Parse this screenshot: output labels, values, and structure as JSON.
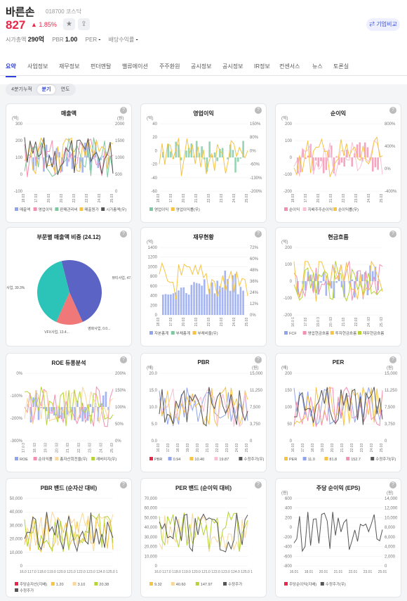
{
  "header": {
    "name": "바른손",
    "code": "018700 코스닥",
    "price": "827",
    "change": "▲ 1.85%",
    "metrics": [
      {
        "label": "시가총액",
        "value": "290억"
      },
      {
        "label": "PBR",
        "value": "1.00"
      },
      {
        "label": "PER",
        "value": "-"
      },
      {
        "label": "배당수익률",
        "value": "-"
      }
    ],
    "compare": "⇄ 기업비교",
    "star_icon": "★",
    "share_icon": "⇪"
  },
  "tabs": [
    "요약",
    "사업정보",
    "재무정보",
    "펀더멘탈",
    "밸류에이션",
    "주주환원",
    "공시정보",
    "공시정보",
    "IR정보",
    "컨센서스",
    "뉴스",
    "토론실"
  ],
  "period": [
    "4분기누적",
    "분기",
    "연도"
  ],
  "qmark": "?",
  "cards": [
    {
      "title": "매출액",
      "ul": "(억)",
      "ur": "(원)",
      "yl": [
        "300",
        "200",
        "100",
        "0",
        "-100"
      ],
      "yr": [
        "2000",
        "1500",
        "1000",
        "500",
        "0"
      ],
      "x": [
        "18.03",
        "17.03",
        "20.03",
        "20.03",
        "22.03",
        "22.03",
        "24.03",
        "25.03"
      ],
      "legend": [
        "매출액",
        "영업이익",
        "판매관리비",
        "매출원가",
        "시가총액(우)"
      ],
      "lc": [
        "#8fa3ef",
        "#f48fb1",
        "#7ec8a0",
        "#f6c343",
        "#555"
      ]
    },
    {
      "title": "영업이익",
      "ul": "(억)",
      "ur": "",
      "yl": [
        "40",
        "20",
        "0",
        "-20",
        "-40",
        "-60"
      ],
      "yr": [
        "150%",
        "80%",
        "0%",
        "-60%",
        "-130%",
        "-200%"
      ],
      "x": [
        "18.03",
        "17.03",
        "20.03",
        "21.03",
        "22.03",
        "23.03",
        "24.03",
        "25.03"
      ],
      "legend": [
        "영업이익",
        "영업이익률(우)"
      ],
      "lc": [
        "#7ec8a0",
        "#f6c343"
      ]
    },
    {
      "title": "순이익",
      "ul": "(억)",
      "ur": "",
      "yl": [
        "200",
        "100",
        "0",
        "-100",
        "-200"
      ],
      "yr": [
        "800%",
        "400%",
        "0%",
        "-400%"
      ],
      "x": [
        "18.03",
        "17.03",
        "20.03",
        "21.03",
        "22.03",
        "23.03",
        "24.03",
        "25.03"
      ],
      "legend": [
        "순이익",
        "지배주주순이익",
        "순이익률(우)"
      ],
      "lc": [
        "#f48fb1",
        "#f9c0d4",
        "#f6c343"
      ]
    },
    {
      "title": "부문별 매출액 비중 (24.12)",
      "ul": "",
      "ur": "",
      "yl": [],
      "yr": [],
      "x": [],
      "legend": [],
      "lc": []
    },
    {
      "title": "재무현황",
      "ul": "(억)",
      "ur": "",
      "yl": [
        "1400",
        "1200",
        "1000",
        "800",
        "600",
        "400",
        "200",
        "0"
      ],
      "yr": [
        "72%",
        "60%",
        "48%",
        "36%",
        "24%",
        "12%",
        "0%"
      ],
      "x": [
        "18.03",
        "17.03",
        "20.03",
        "21.03",
        "22.03",
        "23.03",
        "24.03",
        "25.03"
      ],
      "legend": [
        "자본총계",
        "부채총계",
        "부채비율(우)"
      ],
      "lc": [
        "#8fa3ef",
        "#7ec8a0",
        "#f6c343"
      ]
    },
    {
      "title": "현금흐름",
      "ul": "(억)",
      "ur": "",
      "yl": [
        "200",
        "100",
        "0",
        "-100",
        "-200"
      ],
      "yr": [],
      "x": [
        "16.0 1",
        "17.03",
        "19.0 3",
        "20. 03",
        "21.03",
        "22.03",
        "24. 03",
        "25. 03"
      ],
      "legend": [
        "FCF",
        "영업현금흐름",
        "투자현금흐름",
        "재무현금흐름"
      ],
      "lc": [
        "#8fa3ef",
        "#f48fb1",
        "#f6c343",
        "#b5d334"
      ]
    },
    {
      "title": "ROE 듀퐁분석",
      "ul": "",
      "ur": "",
      "yl": [
        "0%",
        "-100%",
        "-200%",
        "-300%"
      ],
      "yr": [
        "200%",
        "150%",
        "100%",
        "50%",
        "0%"
      ],
      "x": [
        "17.0 3",
        "18. 03",
        "19. 03",
        "20. 03",
        "21. 03",
        "22. 03",
        "23. 03",
        "24. 03",
        "25. 03"
      ],
      "legend": [
        "ROE",
        "순이익률",
        "총자산회전율(우)",
        "레버리지(우)"
      ],
      "lc": [
        "#8fa3ef",
        "#f48fb1",
        "#f9d89c",
        "#b5d334"
      ]
    },
    {
      "title": "PBR",
      "ul": "(배)",
      "ur": "(원)",
      "yl": [
        "20.0",
        "15.0",
        "10.0",
        "5.0",
        "0.0"
      ],
      "yr": [
        "15,000",
        "11,250",
        "7,500",
        "3,750",
        "0"
      ],
      "x": [
        "16.03",
        "17.03",
        "18.03",
        "19.03",
        "20.03",
        "21.03",
        "22.03",
        "23.03",
        "24.03",
        "25.03"
      ],
      "legend": [
        "PBR",
        "0.94",
        "10.40",
        "19.87",
        "수정주가(우)"
      ],
      "lc": [
        "#e8274a",
        "#8fa3ef",
        "#f6c343",
        "#f9c0d4",
        "#555"
      ]
    },
    {
      "title": "PER",
      "ul": "(배)",
      "ur": "(원)",
      "yl": [
        "200",
        "150",
        "100",
        "50",
        "0"
      ],
      "yr": [
        "15,000",
        "11,250",
        "7,500",
        "3,750",
        "0"
      ],
      "x": [
        "16.03",
        "17.03",
        "18.03",
        "19.03",
        "20.03",
        "21.03",
        "22.03",
        "23.03",
        "24.03",
        "25.03"
      ],
      "legend": [
        "PER",
        "11.0",
        "81.8",
        "152.7",
        "수정주가(우)"
      ],
      "lc": [
        "#f6c343",
        "#8fa3ef",
        "#f6c343",
        "#f48fb1",
        "#555"
      ]
    },
    {
      "title": "PBR 밴드 (순자산 대비)",
      "ul": "",
      "ur": "",
      "yl": [
        "50,000",
        "40,000",
        "30,000",
        "20,000",
        "10,000",
        "0"
      ],
      "yr": [],
      "x": [
        "16.0 1",
        "17.0 1",
        "18.0 1",
        "19.0 1",
        "20.0 1",
        "21.0 1",
        "22.0 1",
        "23.0 1",
        "24.0 1",
        "25.0 1"
      ],
      "legend": [
        "주당순자산(지배)",
        "1.20",
        "3.10",
        "20.38",
        "수정주가"
      ],
      "lc": [
        "#e8274a",
        "#f6c343",
        "#f9d89c",
        "#b5d334",
        "#555"
      ]
    },
    {
      "title": "PER 밴드 (순이익 대비)",
      "ul": "",
      "ur": "",
      "yl": [
        "70,000",
        "60,000",
        "50,000",
        "40,000",
        "30,000",
        "20,000",
        "10,000",
        "0"
      ],
      "yr": [],
      "x": [
        "16.0 1",
        "17.0 1",
        "18.0 1",
        "19.0 1",
        "20.0 1",
        "21.0 1",
        "22.0 1",
        "23.0 1",
        "24.0 1",
        "25.0 1"
      ],
      "legend": [
        "9.32",
        "40.60",
        "147.97",
        "수정주가"
      ],
      "lc": [
        "#f6c343",
        "#f9d89c",
        "#b5d334",
        "#555"
      ]
    },
    {
      "title": "주당 순이익 (EPS)",
      "ul": "(원)",
      "ur": "(원)",
      "yl": [
        "600",
        "400",
        "200",
        "0",
        "-200",
        "-400",
        "-600",
        "-800"
      ],
      "yr": [
        "14,000",
        "12,000",
        "10,000",
        "8,000",
        "6,000",
        "4,000",
        "2,000",
        "0"
      ],
      "x": [
        "16.01",
        "18.01",
        "20.01",
        "21.01",
        "22.01",
        "23.01",
        "25.01"
      ],
      "legend": [
        "주당순이익(지배)",
        "수정주가(우)"
      ],
      "lc": [
        "#e8274a",
        "#555"
      ]
    }
  ],
  "pie": {
    "slices": [
      {
        "label": "뷰티사업, 47.3%",
        "value": 47.3,
        "color": "#5b63c4"
      },
      {
        "label": "영화사업, 0.0...",
        "value": 0.01,
        "color": "#f6c343"
      },
      {
        "label": "VFX사업, 13.4...",
        "value": 13.4,
        "color": "#f07878"
      },
      {
        "label": "기타사업, 39.3%",
        "value": 39.3,
        "color": "#2cc4b9"
      }
    ]
  }
}
